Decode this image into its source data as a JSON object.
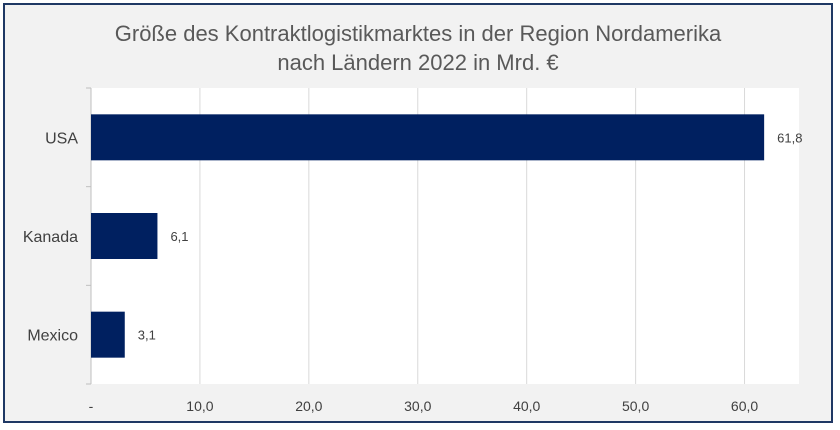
{
  "chart_data": {
    "type": "bar",
    "orientation": "horizontal",
    "title": "Größe des Kontraktlogistikmarktes in der Region Nordamerika nach Ländern 2022 in Mrd. €",
    "title_lines": [
      "Größe des Kontraktlogistikmarktes in der Region Nordamerika",
      "nach Ländern 2022 in Mrd. €"
    ],
    "categories": [
      "USA",
      "Kanada",
      "Mexico"
    ],
    "values": [
      61.8,
      6.1,
      3.1
    ],
    "value_labels": [
      "61,8",
      "6,1",
      "3,1"
    ],
    "xlim": [
      0,
      65
    ],
    "x_ticks": [
      0,
      10,
      20,
      30,
      40,
      50,
      60
    ],
    "x_tick_labels": [
      "-",
      "10,0",
      "20,0",
      "30,0",
      "40,0",
      "50,0",
      "60,0"
    ],
    "xlabel": "",
    "ylabel": "",
    "grid": true,
    "legend": "none",
    "bar_color": "#002060"
  }
}
